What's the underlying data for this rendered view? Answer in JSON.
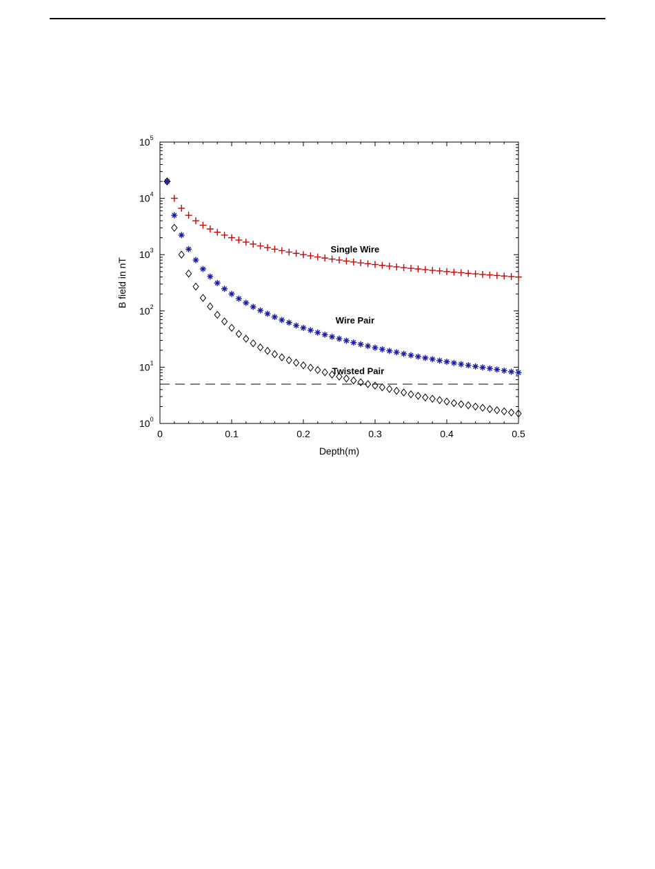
{
  "chart_data": {
    "type": "scatter",
    "title": "",
    "xlabel": "Depth(m)",
    "ylabel": "B field in nT",
    "xlim": [
      0,
      0.5
    ],
    "ylim": [
      1,
      100000
    ],
    "y_scale": "log",
    "x_ticks": [
      0,
      0.1,
      0.2,
      0.3,
      0.4,
      0.5
    ],
    "x_tick_labels": [
      "0",
      "0.1",
      "0.2",
      "0.3",
      "0.4",
      "0.5"
    ],
    "y_tick_base": "10",
    "y_tick_exponents": [
      "0",
      "1",
      "2",
      "3",
      "4",
      "5"
    ],
    "grid": false,
    "x": [
      0.01,
      0.02,
      0.03,
      0.04,
      0.05,
      0.06,
      0.07,
      0.08,
      0.09,
      0.1,
      0.11,
      0.12,
      0.13,
      0.14,
      0.15,
      0.16,
      0.17,
      0.18,
      0.19,
      0.2,
      0.21,
      0.22,
      0.23,
      0.24,
      0.25,
      0.26,
      0.27,
      0.28,
      0.29,
      0.3,
      0.31,
      0.32,
      0.33,
      0.34,
      0.35,
      0.36,
      0.37,
      0.38,
      0.39,
      0.4,
      0.41,
      0.42,
      0.43,
      0.44,
      0.45,
      0.46,
      0.47,
      0.48,
      0.49,
      0.5
    ],
    "series": [
      {
        "marker": "plus",
        "color": "#cc0000",
        "values": [
          20000,
          10000,
          6667,
          5000,
          4000,
          3333,
          2857,
          2500,
          2222,
          2000,
          1818,
          1667,
          1538,
          1429,
          1333,
          1250,
          1176,
          1111,
          1053,
          1000,
          952,
          909,
          870,
          833,
          800,
          769,
          741,
          714,
          690,
          667,
          645,
          625,
          606,
          588,
          571,
          556,
          541,
          526,
          513,
          500,
          488,
          476,
          465,
          455,
          444,
          435,
          426,
          417,
          408,
          400
        ]
      },
      {
        "marker": "asterisk",
        "color": "#1a1aaa",
        "values": [
          20000,
          5000,
          2222,
          1250,
          800,
          556,
          408,
          313,
          247,
          200,
          165,
          139,
          118,
          102,
          89,
          78,
          69,
          62,
          55,
          50,
          45.4,
          41.3,
          37.8,
          34.7,
          32.0,
          29.6,
          27.4,
          25.5,
          23.8,
          22.2,
          20.8,
          19.5,
          18.4,
          17.3,
          16.3,
          15.4,
          14.6,
          13.9,
          13.1,
          12.5,
          11.9,
          11.3,
          10.8,
          10.3,
          9.9,
          9.5,
          9.1,
          8.7,
          8.3,
          8.0
        ]
      },
      {
        "marker": "diamond",
        "color": "#000000",
        "values": [
          20000,
          3000,
          1000,
          460,
          270,
          170,
          120,
          85,
          65,
          50,
          39,
          32,
          26.5,
          22.5,
          19.5,
          17,
          15,
          13.3,
          12,
          10.8,
          9.8,
          8.9,
          8.1,
          7.4,
          6.8,
          6.3,
          5.8,
          5.4,
          5.0,
          4.7,
          4.4,
          4.1,
          3.8,
          3.55,
          3.3,
          3.1,
          2.9,
          2.75,
          2.6,
          2.45,
          2.3,
          2.2,
          2.1,
          2.0,
          1.9,
          1.8,
          1.72,
          1.64,
          1.57,
          1.5
        ]
      }
    ],
    "reference_line": {
      "y": 5,
      "style": "dashed",
      "color": "#000000"
    },
    "annotations": [
      {
        "text": "Single Wire",
        "x": 0.238,
        "y": 1100
      },
      {
        "text": "Wire Pair",
        "x": 0.245,
        "y": 60
      },
      {
        "text": "Twisted Pair",
        "x": 0.24,
        "y": 7.5
      }
    ]
  }
}
